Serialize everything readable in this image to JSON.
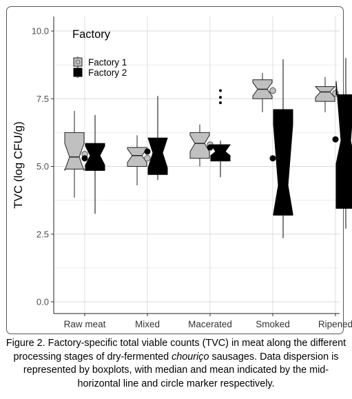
{
  "chart_data": {
    "type": "boxplot",
    "legend_title": "Factory",
    "legend_position": "top-left",
    "ylabel": "TVC (log CFU/g)",
    "ylim": [
      0,
      10.5
    ],
    "yticks": [
      "0.0",
      "2.5",
      "5.0",
      "7.5",
      "10.0"
    ],
    "categories": [
      "Raw meat",
      "Mixed",
      "Macerated",
      "Smoked",
      "Ripened"
    ],
    "grid": true,
    "colors": {
      "factory_1": "#c0c0c0",
      "factory_2": "#000000"
    },
    "series": [
      {
        "name": "Factory 1",
        "boxes": [
          {
            "whisker_low": 3.85,
            "q1": 4.9,
            "median": 5.35,
            "q3": 6.25,
            "whisker_high": 7.05,
            "mean": 5.45,
            "notch_low": 4.85,
            "notch_high": 5.85,
            "outliers": []
          },
          {
            "whisker_low": 4.3,
            "q1": 5.0,
            "median": 5.4,
            "q3": 5.7,
            "whisker_high": 6.15,
            "mean": 5.3,
            "notch_low": 5.15,
            "notch_high": 5.65,
            "outliers": []
          },
          {
            "whisker_low": 5.0,
            "q1": 5.3,
            "median": 5.85,
            "q3": 6.25,
            "whisker_high": 6.55,
            "mean": 5.8,
            "notch_low": 5.55,
            "notch_high": 6.15,
            "outliers": []
          },
          {
            "whisker_low": 7.0,
            "q1": 7.5,
            "median": 7.85,
            "q3": 8.2,
            "whisker_high": 8.45,
            "mean": 7.8,
            "notch_low": 7.6,
            "notch_high": 8.1,
            "outliers": []
          },
          {
            "whisker_low": 7.0,
            "q1": 7.4,
            "median": 7.75,
            "q3": 7.95,
            "whisker_high": 8.3,
            "mean": 7.7,
            "notch_low": 7.55,
            "notch_high": 7.95,
            "outliers": []
          }
        ]
      },
      {
        "name": "Factory 2",
        "boxes": [
          {
            "whisker_low": 3.25,
            "q1": 4.85,
            "median": 5.4,
            "q3": 5.85,
            "whisker_high": 6.9,
            "mean": 5.3,
            "notch_low": 5.05,
            "notch_high": 5.75,
            "outliers": []
          },
          {
            "whisker_low": 4.5,
            "q1": 4.7,
            "median": 5.5,
            "q3": 6.05,
            "whisker_high": 7.6,
            "mean": 5.55,
            "notch_low": 4.95,
            "notch_high": 6.05,
            "outliers": []
          },
          {
            "whisker_low": 4.6,
            "q1": 5.2,
            "median": 5.55,
            "q3": 5.8,
            "whisker_high": 5.95,
            "mean": 5.7,
            "notch_low": 5.4,
            "notch_high": 5.8,
            "outliers": [
              7.35,
              7.55,
              7.8
            ]
          },
          {
            "whisker_low": 2.35,
            "q1": 3.2,
            "median": 4.3,
            "q3": 7.1,
            "whisker_high": 8.95,
            "mean": 5.3,
            "notch_low": 3.25,
            "notch_high": 6.55,
            "outliers": []
          },
          {
            "whisker_low": 2.7,
            "q1": 3.45,
            "median": 5.95,
            "q3": 7.65,
            "whisker_high": 9.0,
            "mean": 6.0,
            "notch_low": 5.1,
            "notch_high": 8.15,
            "outliers": []
          }
        ]
      }
    ]
  },
  "caption": {
    "part1": "Figure 2. Factory-specific total viable counts (TVC) in meat along the different processing stages of dry-fermented ",
    "italic": "chouriço",
    "part2": " sausages. Data dispersion is represented by boxplots, with median and mean indicated by the mid-horizontal line and circle marker respectively."
  }
}
